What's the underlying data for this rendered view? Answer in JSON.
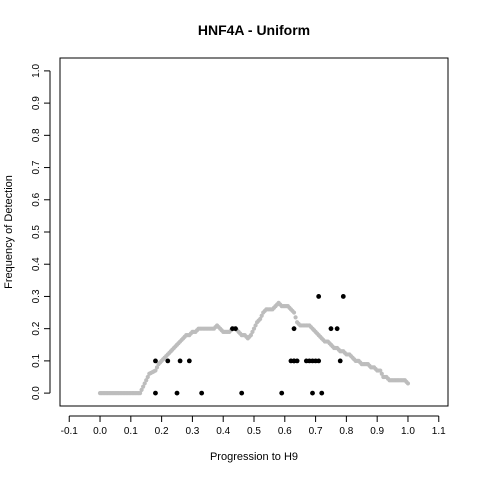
{
  "chart_data": {
    "type": "scatter",
    "title": "HNF4A - Uniform",
    "xlabel": "Progression to H9",
    "ylabel": "Frequency of Detection",
    "xlim": [
      -0.13,
      1.13
    ],
    "ylim": [
      -0.04,
      1.04
    ],
    "xticks": [
      "-0.1",
      "0.0",
      "0.1",
      "0.2",
      "0.3",
      "0.4",
      "0.5",
      "0.6",
      "0.7",
      "0.8",
      "0.9",
      "1.0",
      "1.1"
    ],
    "xtick_values": [
      -0.1,
      0.0,
      0.1,
      0.2,
      0.3,
      0.4,
      0.5,
      0.6,
      0.7,
      0.8,
      0.9,
      1.0,
      1.1
    ],
    "yticks": [
      "0.0",
      "0.1",
      "0.2",
      "0.3",
      "0.4",
      "0.5",
      "0.6",
      "0.7",
      "0.8",
      "0.9",
      "1.0"
    ],
    "ytick_values": [
      0.0,
      0.1,
      0.2,
      0.3,
      0.4,
      0.5,
      0.6,
      0.7,
      0.8,
      0.9,
      1.0
    ],
    "grid": false,
    "colors": {
      "observed": "#000000",
      "smoothed": "#bdbdbd"
    },
    "series": [
      {
        "color": "#bdbdbd",
        "x": [
          0.0,
          0.01,
          0.02,
          0.03,
          0.04,
          0.05,
          0.06,
          0.07,
          0.08,
          0.09,
          0.1,
          0.11,
          0.12,
          0.13,
          0.14,
          0.15,
          0.16,
          0.17,
          0.18,
          0.19,
          0.2,
          0.21,
          0.22,
          0.23,
          0.24,
          0.25,
          0.26,
          0.27,
          0.28,
          0.29,
          0.3,
          0.31,
          0.32,
          0.33,
          0.34,
          0.35,
          0.36,
          0.37,
          0.38,
          0.39,
          0.4,
          0.41,
          0.42,
          0.43,
          0.44,
          0.45,
          0.46,
          0.47,
          0.48,
          0.49,
          0.5,
          0.51,
          0.52,
          0.53,
          0.54,
          0.55,
          0.56,
          0.57,
          0.58,
          0.59,
          0.6,
          0.61,
          0.62,
          0.63,
          0.64,
          0.65,
          0.66,
          0.67,
          0.68,
          0.69,
          0.7,
          0.71,
          0.72,
          0.73,
          0.74,
          0.75,
          0.76,
          0.77,
          0.78,
          0.79,
          0.8,
          0.81,
          0.82,
          0.83,
          0.84,
          0.85,
          0.86,
          0.87,
          0.88,
          0.89,
          0.9,
          0.91,
          0.92,
          0.93,
          0.94,
          0.95,
          0.96,
          0.97,
          0.98,
          0.99,
          1.0
        ],
        "y": [
          0.0,
          0.0,
          0.0,
          0.0,
          0.0,
          0.0,
          0.0,
          0.0,
          0.0,
          0.0,
          0.0,
          0.0,
          0.0,
          0.0,
          0.02,
          0.04,
          0.06,
          0.065,
          0.07,
          0.09,
          0.1,
          0.11,
          0.12,
          0.13,
          0.14,
          0.15,
          0.16,
          0.17,
          0.18,
          0.18,
          0.19,
          0.19,
          0.2,
          0.2,
          0.2,
          0.2,
          0.2,
          0.2,
          0.21,
          0.2,
          0.19,
          0.19,
          0.19,
          0.2,
          0.2,
          0.19,
          0.18,
          0.18,
          0.17,
          0.18,
          0.2,
          0.22,
          0.23,
          0.25,
          0.26,
          0.26,
          0.26,
          0.27,
          0.28,
          0.27,
          0.27,
          0.27,
          0.26,
          0.25,
          0.22,
          0.21,
          0.21,
          0.21,
          0.21,
          0.2,
          0.19,
          0.18,
          0.17,
          0.16,
          0.16,
          0.15,
          0.14,
          0.14,
          0.13,
          0.13,
          0.12,
          0.12,
          0.11,
          0.1,
          0.1,
          0.09,
          0.09,
          0.09,
          0.08,
          0.08,
          0.07,
          0.07,
          0.05,
          0.05,
          0.04,
          0.04,
          0.04,
          0.04,
          0.04,
          0.04,
          0.03
        ]
      },
      {
        "color": "#000000",
        "x": [
          0.18,
          0.18,
          0.22,
          0.25,
          0.26,
          0.29,
          0.33,
          0.43,
          0.44,
          0.46,
          0.59,
          0.62,
          0.63,
          0.63,
          0.63,
          0.64,
          0.67,
          0.68,
          0.69,
          0.69,
          0.7,
          0.71,
          0.71,
          0.72,
          0.75,
          0.77,
          0.78,
          0.79
        ],
        "y": [
          0.0,
          0.1,
          0.1,
          0.0,
          0.1,
          0.1,
          0.0,
          0.2,
          0.2,
          0.0,
          0.0,
          0.1,
          0.2,
          0.1,
          0.1,
          0.1,
          0.1,
          0.1,
          0.1,
          0.0,
          0.1,
          0.3,
          0.1,
          0.0,
          0.2,
          0.2,
          0.1,
          0.3
        ]
      }
    ]
  }
}
